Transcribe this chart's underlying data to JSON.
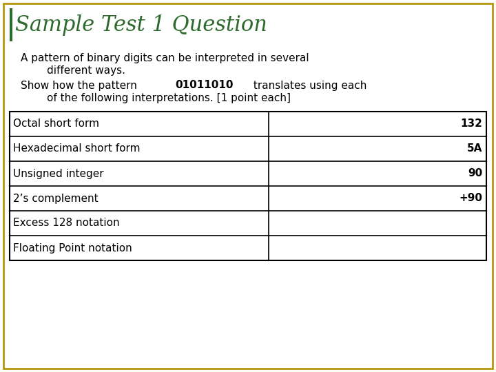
{
  "title": "Sample Test 1 Question",
  "title_color": "#2D6B2D",
  "background_color": "#FFFFFF",
  "border_color": "#B8960C",
  "text_color": "#000000",
  "table_rows": [
    {
      "label": "Octal short form",
      "answer": "132",
      "answer_bold": true
    },
    {
      "label": "Hexadecimal short form",
      "answer": "5A",
      "answer_bold": true
    },
    {
      "label": "Unsigned integer",
      "answer": "90",
      "answer_bold": true
    },
    {
      "label": "2’s complement",
      "answer": "+90",
      "answer_bold": true
    },
    {
      "label": "Excess 128 notation",
      "answer": "",
      "answer_bold": false
    },
    {
      "label": "Floating Point notation",
      "answer": "",
      "answer_bold": false
    }
  ],
  "table_line_color": "#000000",
  "font_size_title": 22,
  "font_size_body": 11,
  "font_size_table": 11
}
